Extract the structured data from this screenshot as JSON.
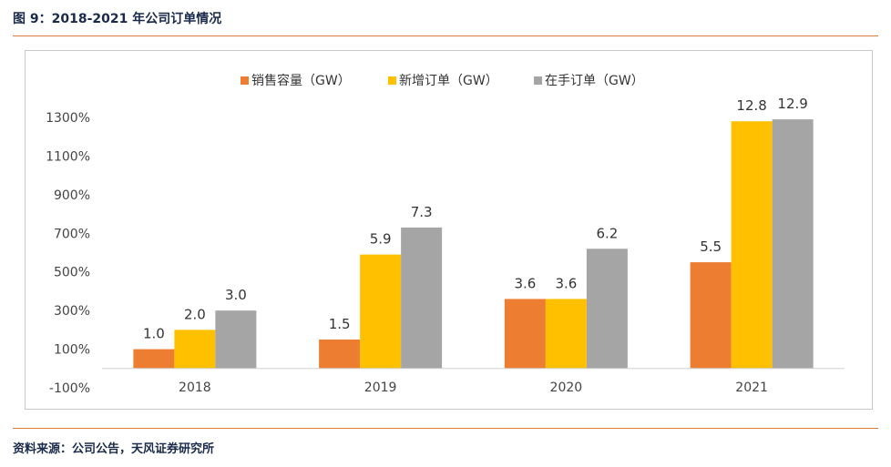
{
  "figure": {
    "title": "图 9：2018-2021 年公司订单情况",
    "source": "资料来源：公司公告，天风证券研究所"
  },
  "chart_data": {
    "type": "bar",
    "title": "",
    "xlabel": "",
    "ylabel": "",
    "categories": [
      "2018",
      "2019",
      "2020",
      "2021"
    ],
    "series": [
      {
        "name": "销售容量（GW）",
        "color": "#ED7D31",
        "values": [
          1.0,
          1.5,
          3.6,
          5.5
        ],
        "labels": [
          "1.0",
          "1.5",
          "3.6",
          "5.5"
        ]
      },
      {
        "name": "新增订单（GW）",
        "color": "#FFC000",
        "values": [
          2.0,
          5.9,
          3.6,
          12.8
        ],
        "labels": [
          "2.0",
          "5.9",
          "3.6",
          "12.8"
        ]
      },
      {
        "name": "在手订单（GW）",
        "color": "#A5A5A5",
        "values": [
          3.0,
          7.3,
          6.2,
          12.9
        ],
        "labels": [
          "3.0",
          "7.3",
          "6.2",
          "12.9"
        ]
      }
    ],
    "yticks": [
      -100,
      100,
      300,
      500,
      700,
      900,
      1100,
      1300
    ],
    "ytick_labels": [
      "-100%",
      "100%",
      "300%",
      "500%",
      "700%",
      "900%",
      "1100%",
      "1300%"
    ],
    "ylim": [
      -100,
      1400
    ],
    "value_scale": 100,
    "legend_position": "top-center",
    "grid": false
  }
}
